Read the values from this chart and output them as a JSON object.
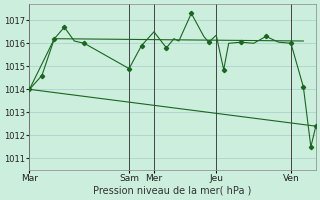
{
  "background_color": "#cceedd",
  "grid_color": "#aacccc",
  "line_color": "#1a6620",
  "ylim": [
    1010.5,
    1017.7
  ],
  "yticks": [
    1011,
    1012,
    1013,
    1014,
    1015,
    1016,
    1017
  ],
  "xlabel": "Pression niveau de la mer( hPa )",
  "day_labels": [
    "Mar",
    "Sam",
    "Mer",
    "Jeu",
    "Ven"
  ],
  "day_tick_pos": [
    0,
    4,
    5,
    7.5,
    10.5
  ],
  "vline_pos": [
    0,
    4,
    5,
    7.5,
    10.5
  ],
  "xlim": [
    0,
    11.5
  ],
  "series1_x": [
    0,
    0.5,
    1.0,
    1.4,
    1.8,
    2.2,
    4.0,
    4.5,
    5.0,
    5.5,
    5.8,
    6.0,
    6.5,
    7.0,
    7.2,
    7.5,
    7.8,
    8.0,
    8.5,
    9.0,
    9.5,
    10.0,
    10.5,
    11.0,
    11.3,
    11.5
  ],
  "series1_y": [
    1014.0,
    1014.6,
    1016.2,
    1016.7,
    1016.1,
    1016.0,
    1014.9,
    1015.9,
    1016.5,
    1015.8,
    1016.2,
    1016.1,
    1017.3,
    1016.3,
    1016.05,
    1016.35,
    1014.85,
    1016.0,
    1016.05,
    1016.0,
    1016.3,
    1016.05,
    1016.0,
    1014.1,
    1011.5,
    1012.4
  ],
  "series2_x": [
    0,
    11.5
  ],
  "series2_y": [
    1014.0,
    1012.4
  ],
  "series3_x": [
    0,
    1.0,
    11.0
  ],
  "series3_y": [
    1014.0,
    1016.2,
    1016.1
  ],
  "marker_x": [
    0,
    0.5,
    1.0,
    1.4,
    2.2,
    4.0,
    4.5,
    5.5,
    6.5,
    7.2,
    7.8,
    8.5,
    9.5,
    10.5,
    11.0,
    11.3,
    11.5
  ],
  "marker_y": [
    1014.0,
    1014.6,
    1016.2,
    1016.7,
    1016.0,
    1014.9,
    1015.9,
    1015.8,
    1017.3,
    1016.05,
    1014.85,
    1016.05,
    1016.3,
    1016.0,
    1014.1,
    1011.5,
    1012.4
  ]
}
